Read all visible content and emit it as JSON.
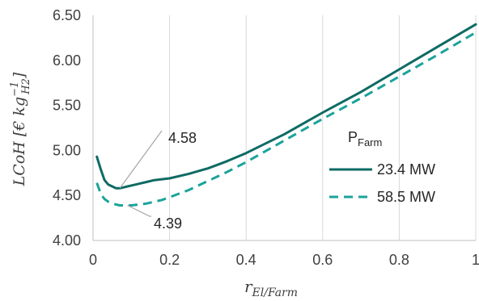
{
  "chart_data": {
    "type": "line",
    "xlabel": {
      "main": "r",
      "sub": "El/Farm"
    },
    "ylabel": {
      "main": "LCoH [€ kg",
      "sub": "H2",
      "sup": "−1",
      "close": "]"
    },
    "xlim": [
      0,
      1
    ],
    "ylim": [
      4.0,
      6.5
    ],
    "x_ticks": [
      0,
      0.2,
      0.4,
      0.6,
      0.8,
      1
    ],
    "x_tick_labels": [
      "0",
      "0.2",
      "0.4",
      "0.6",
      "0.8",
      "1"
    ],
    "y_ticks": [
      4.0,
      4.5,
      5.0,
      5.5,
      6.0,
      6.5
    ],
    "y_tick_labels": [
      "4.00",
      "4.50",
      "5.00",
      "5.50",
      "6.00",
      "6.50"
    ],
    "grid": {
      "vertical": true,
      "horizontal": false
    },
    "legend": {
      "title_main": "P",
      "title_sub": "Farm",
      "placement": "right"
    },
    "series": [
      {
        "name": "23.4 MW",
        "color": "#0e6b64",
        "style": "solid",
        "x": [
          0.01,
          0.02,
          0.03,
          0.04,
          0.05,
          0.06,
          0.07,
          0.08,
          0.09,
          0.1,
          0.12,
          0.14,
          0.16,
          0.18,
          0.2,
          0.25,
          0.3,
          0.35,
          0.4,
          0.5,
          0.6,
          0.7,
          0.8,
          0.9,
          1.0
        ],
        "y": [
          4.93,
          4.79,
          4.67,
          4.62,
          4.6,
          4.58,
          4.58,
          4.59,
          4.6,
          4.61,
          4.63,
          4.65,
          4.67,
          4.68,
          4.69,
          4.74,
          4.8,
          4.88,
          4.97,
          5.18,
          5.42,
          5.65,
          5.9,
          6.15,
          6.4
        ]
      },
      {
        "name": "58.5 MW",
        "color": "#1aa39a",
        "style": "dashed",
        "x": [
          0.01,
          0.02,
          0.03,
          0.04,
          0.05,
          0.06,
          0.07,
          0.08,
          0.09,
          0.1,
          0.12,
          0.14,
          0.16,
          0.18,
          0.2,
          0.25,
          0.3,
          0.35,
          0.4,
          0.5,
          0.6,
          0.7,
          0.8,
          0.9,
          1.0
        ],
        "y": [
          4.64,
          4.52,
          4.46,
          4.43,
          4.41,
          4.4,
          4.39,
          4.39,
          4.39,
          4.39,
          4.4,
          4.41,
          4.43,
          4.45,
          4.48,
          4.56,
          4.66,
          4.76,
          4.87,
          5.11,
          5.35,
          5.58,
          5.82,
          6.06,
          6.31
        ]
      }
    ],
    "annotations": [
      {
        "text": "4.58",
        "x": 0.07,
        "y": 4.58
      },
      {
        "text": "4.39",
        "x": 0.09,
        "y": 4.39
      }
    ]
  }
}
